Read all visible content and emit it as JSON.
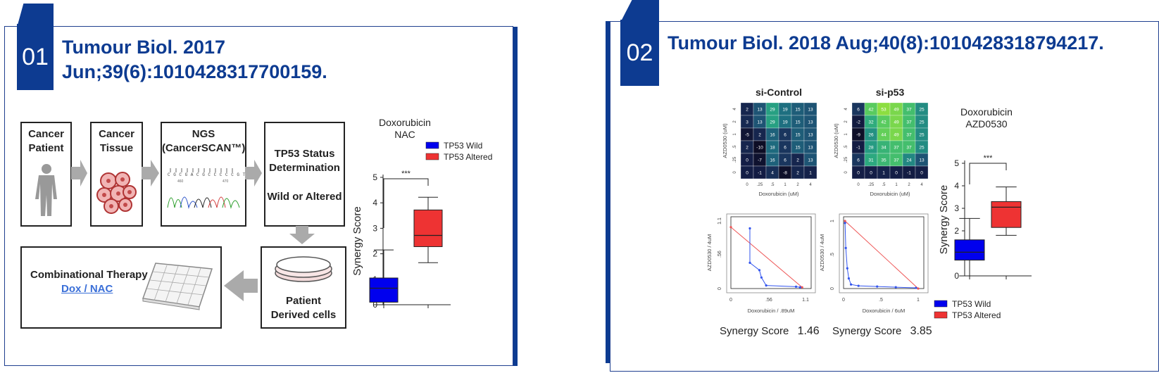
{
  "panel1": {
    "number": "01",
    "title_line1": "Tumour Biol. 2017",
    "title_line2": "Jun;39(6):1010428317700159.",
    "flow": {
      "cancer_patient": [
        "Cancer",
        "Patient"
      ],
      "cancer_tissue": [
        "Cancer",
        "Tissue"
      ],
      "ngs": [
        "NGS",
        "(CancerSCAN™)"
      ],
      "tp53_status": [
        "TP53 Status",
        "Determination"
      ],
      "wild_or_altered": "Wild or Altered",
      "patient_cells": [
        "Patient",
        "Derived cells"
      ],
      "combination": "Combinational Therapy",
      "combination_link": "Dox / NAC"
    },
    "sequence_text": "C G C G A C G C C C C C G T C",
    "sequence_pos": [
      "460",
      "470"
    ]
  },
  "panel2": {
    "number": "02",
    "title": "Tumour Biol. 2018 Aug;40(8):1010428318794217.",
    "synergy_left_label": "Synergy Score",
    "synergy_left_value": "1.46",
    "synergy_right_label": "Synergy Score",
    "synergy_right_value": "3.85"
  },
  "colors": {
    "brand": "#0d3b91",
    "wild": "#0000ee",
    "altered": "#ee3333"
  },
  "chart_data": [
    {
      "type": "box",
      "title": "Doxorubicin",
      "subtitle": "NAC",
      "ylabel": "Synergy Score",
      "ylim": [
        0,
        5
      ],
      "yticks": [
        "0",
        "1",
        "2",
        "3",
        "4",
        "5"
      ],
      "significance": "***",
      "legend_position": "top-right",
      "series": [
        {
          "name": "TP53 Wild",
          "color": "#0000ee",
          "min": 0,
          "q1": 0.1,
          "median": 0.65,
          "q3": 1.05,
          "max": 2.15
        },
        {
          "name": "TP53 Altered",
          "color": "#ee3333",
          "min": 1.65,
          "q1": 2.28,
          "median": 2.72,
          "q3": 3.72,
          "max": 4.22
        }
      ]
    },
    {
      "type": "heatmap",
      "title": "si-Control",
      "xlabel": "Doxorubicin (uM)",
      "ylabel": "AZD0530 (uM)",
      "xticks": [
        "0",
        ".25",
        ".5",
        "1",
        "2",
        "4"
      ],
      "yticks": [
        "0",
        ".25",
        ".5",
        "1",
        "2",
        "4"
      ],
      "values": [
        [
          "2",
          "13",
          "29",
          "19",
          "15",
          "13"
        ],
        [
          "3",
          "13",
          "29",
          "19",
          "15",
          "13"
        ],
        [
          "-5",
          "2",
          "16",
          "6",
          "15",
          "13"
        ],
        [
          "2",
          "-10",
          "18",
          "6",
          "15",
          "13"
        ],
        [
          "0",
          "-7",
          "16",
          "6",
          "2",
          "13"
        ],
        [
          "0",
          "-1",
          "4",
          "-8",
          "2",
          "1"
        ]
      ]
    },
    {
      "type": "heatmap",
      "title": "si-p53",
      "xlabel": "Doxorubicin (uM)",
      "ylabel": "AZD0530 (uM)",
      "xticks": [
        "0",
        ".25",
        ".5",
        "1",
        "2",
        "4"
      ],
      "yticks": [
        "0",
        ".25",
        ".5",
        "1",
        "2",
        "4"
      ],
      "values": [
        [
          "6",
          "42",
          "53",
          "49",
          "37",
          "25"
        ],
        [
          "-2",
          "32",
          "42",
          "49",
          "37",
          "25"
        ],
        [
          "-9",
          "26",
          "44",
          "49",
          "37",
          "25"
        ],
        [
          "-1",
          "28",
          "34",
          "37",
          "37",
          "25"
        ],
        [
          "6",
          "31",
          "35",
          "37",
          "24",
          "13"
        ],
        [
          "0",
          "0",
          "1",
          "0",
          "-1",
          "0"
        ]
      ]
    },
    {
      "type": "line",
      "xlabel": "Doxorubicin / .89uM",
      "ylabel": "AZD0530 / 4uM",
      "xticks": [
        "0",
        ".56",
        "1.1"
      ],
      "yticks": [
        "0",
        ".56",
        "1.1"
      ],
      "xlim": [
        0,
        1.1
      ],
      "ylim": [
        0,
        1.1
      ],
      "series": [
        {
          "name": "additivity",
          "color": "#ee5555",
          "x": [
            0,
            1.05
          ],
          "y": [
            1,
            0.02
          ]
        },
        {
          "name": "isobologram",
          "color": "#3355ee",
          "x": [
            0.28,
            0.28,
            0.42,
            0.45,
            0.52,
            0.96,
            1.02
          ],
          "y": [
            0.98,
            0.42,
            0.3,
            0.18,
            0.05,
            0.03,
            0.02
          ]
        }
      ]
    },
    {
      "type": "line",
      "xlabel": "Doxorubicin / 6uM",
      "ylabel": "AZD0530 / 4uM",
      "xticks": [
        "0",
        ".5",
        "1"
      ],
      "yticks": [
        "0",
        ".5",
        "1"
      ],
      "xlim": [
        0,
        1
      ],
      "ylim": [
        0,
        1
      ],
      "series": [
        {
          "name": "additivity",
          "color": "#ee5555",
          "x": [
            0.02,
            1.0
          ],
          "y": [
            1.0,
            0.0
          ]
        },
        {
          "name": "isobologram",
          "color": "#3355ee",
          "x": [
            0.02,
            0.03,
            0.05,
            0.07,
            0.1,
            0.2,
            0.45,
            0.7,
            0.97
          ],
          "y": [
            0.97,
            0.6,
            0.3,
            0.15,
            0.06,
            0.04,
            0.03,
            0.02,
            0.01
          ]
        }
      ]
    },
    {
      "type": "box",
      "title": "Doxorubicin",
      "subtitle": "AZD0530",
      "ylabel": "Synergy Score",
      "ylim": [
        0,
        5
      ],
      "yticks": [
        "0",
        "1",
        "2",
        "3",
        "4",
        "5"
      ],
      "significance": "***",
      "legend_position": "bottom",
      "series": [
        {
          "name": "TP53 Wild",
          "color": "#0000ee",
          "min": 0,
          "q1": 0.7,
          "median": 1.05,
          "q3": 1.6,
          "max": 2.55
        },
        {
          "name": "TP53 Altered",
          "color": "#ee3333",
          "min": 1.8,
          "q1": 2.15,
          "median": 3.05,
          "q3": 3.3,
          "max": 3.95
        }
      ]
    }
  ]
}
